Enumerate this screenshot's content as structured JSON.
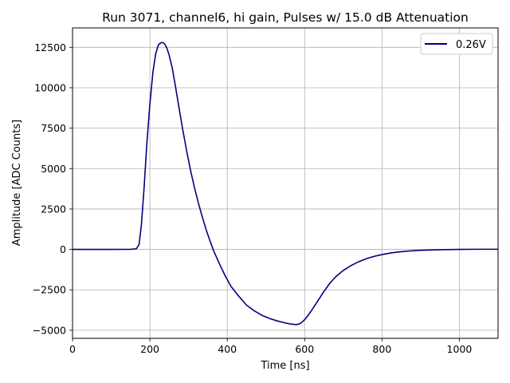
{
  "chart_data": {
    "type": "line",
    "title": "Run 3071, channel6, hi gain, Pulses w/ 15.0 dB Attenuation",
    "xlabel": "Time [ns]",
    "ylabel": "Amplitude [ADC Counts]",
    "xlim": [
      0,
      1100
    ],
    "ylim": [
      -5500,
      13700
    ],
    "xticks": [
      0,
      200,
      400,
      600,
      800,
      1000
    ],
    "xtick_labels": [
      "0",
      "200",
      "400",
      "600",
      "800",
      "1000"
    ],
    "yticks": [
      -5000,
      -2500,
      0,
      2500,
      5000,
      7500,
      10000,
      12500
    ],
    "ytick_labels": [
      "−5000",
      "−2500",
      "0",
      "2500",
      "5000",
      "7500",
      "10000",
      "12500"
    ],
    "grid": true,
    "legend_position": "top-right",
    "series": [
      {
        "name": "0.26V",
        "color": "#000080",
        "x": [
          0,
          50,
          100,
          150,
          165,
          172,
          178,
          185,
          192,
          200,
          208,
          215,
          222,
          228,
          233,
          238,
          244,
          250,
          258,
          266,
          275,
          285,
          295,
          305,
          315,
          325,
          335,
          345,
          355,
          365,
          380,
          395,
          410,
          430,
          450,
          470,
          490,
          510,
          530,
          550,
          565,
          578,
          585,
          592,
          600,
          610,
          620,
          635,
          650,
          665,
          680,
          700,
          720,
          740,
          760,
          780,
          800,
          825,
          850,
          875,
          900,
          950,
          1000,
          1050,
          1100
        ],
        "y": [
          0,
          0,
          0,
          5,
          40,
          300,
          1500,
          3800,
          6500,
          9000,
          11000,
          12100,
          12650,
          12780,
          12800,
          12720,
          12450,
          12000,
          11200,
          10100,
          8800,
          7400,
          6100,
          4900,
          3850,
          2900,
          2050,
          1250,
          550,
          -100,
          -900,
          -1650,
          -2300,
          -2900,
          -3450,
          -3800,
          -4080,
          -4280,
          -4430,
          -4550,
          -4620,
          -4650,
          -4620,
          -4530,
          -4350,
          -4050,
          -3700,
          -3150,
          -2600,
          -2100,
          -1700,
          -1300,
          -1000,
          -760,
          -570,
          -430,
          -320,
          -210,
          -140,
          -90,
          -55,
          -20,
          0,
          10,
          10
        ]
      }
    ]
  }
}
